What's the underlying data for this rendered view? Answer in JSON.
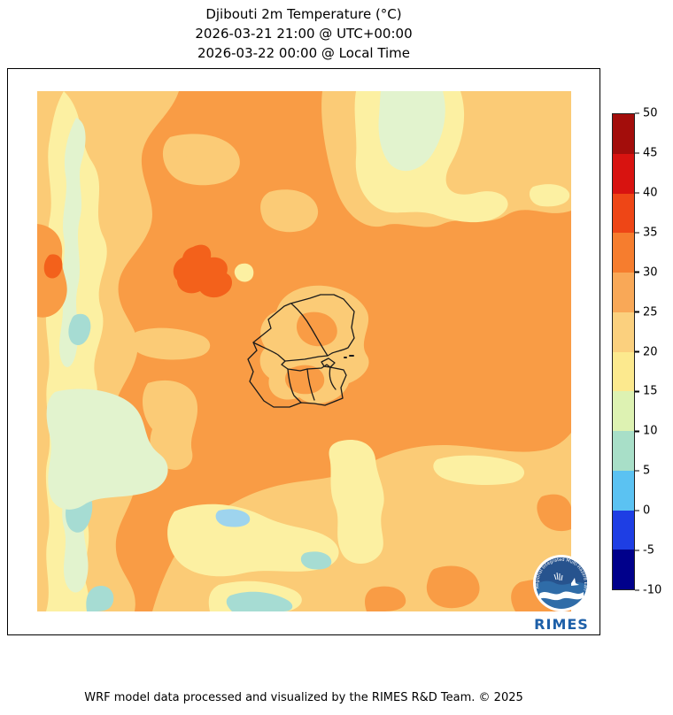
{
  "title": {
    "line1": "Djibouti 2m Temperature (°C)",
    "line2": "2026-03-21 21:00 @ UTC+00:00",
    "line3": "2026-03-22 00:00 @ Local Time"
  },
  "footer": {
    "text": "WRF model data processed and visualized by the RIMES R&D Team. © 2025"
  },
  "logo": {
    "name": "RIMES",
    "ring_text": "Regional Integrated Multi-Hazard Early Warning System"
  },
  "chart_data": {
    "type": "heatmap",
    "title": "Djibouti 2m Temperature (°C)",
    "time_utc": "2026-03-21 21:00 @ UTC+00:00",
    "time_local": "2026-03-22 00:00 @ Local Time",
    "units": "°C",
    "legend_position": "right",
    "colorbar": {
      "levels": [
        -10,
        -5,
        0,
        5,
        10,
        15,
        20,
        25,
        30,
        35,
        40,
        45,
        50
      ],
      "colors": [
        "#00008B",
        "#1E3EE4",
        "#5BC2F2",
        "#A8DFC8",
        "#DDF2B2",
        "#FCE98E",
        "#FBD07E",
        "#F9A857",
        "#F67D2E",
        "#EE4616",
        "#D81310",
        "#A30D0B"
      ]
    },
    "map_region": "Djibouti and surrounding area (admin boundaries outlined)",
    "field_summary": {
      "western_highland_band_c": "5-20",
      "central_and_northern_lowlands_c": "25-30",
      "hot_spots_c": "30-35",
      "southeast_and_gulf_c": "20-25",
      "coolest_lakes_c": "0-10"
    }
  },
  "palette": {
    "orange_25_30": "#F99C45",
    "light_orange_20_25": "#FBCB76",
    "yellow_15_20": "#FCF0A2",
    "pale_green_10_15": "#E2F3CE",
    "teal_5_10": "#A6DCD3",
    "sky_blue_0_5": "#9ED4EE",
    "hot_orange_30_35": "#F3611B",
    "boundary": "#1a1a1a",
    "logo_blue": "#2f6ca8",
    "logo_dark_blue": "#27538e"
  }
}
